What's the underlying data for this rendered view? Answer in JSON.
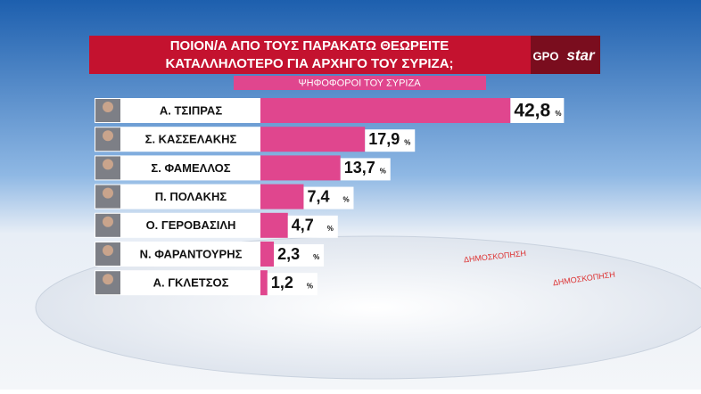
{
  "chart_data": {
    "type": "bar",
    "title": [
      "ΠΟΙΟΝ/Α ΑΠΟ ΤΟΥΣ ΠΑΡΑΚΑΤΩ ΘΕΩΡΕΙΤΕ",
      "ΚΑΤΑΛΛΗΛΟΤΕΡΟ ΓΙΑ ΑΡΧΗΓΟ ΤΟΥ ΣΥΡΙΖΑ;"
    ],
    "subtitle": "ΨΗΦΟΦΟΡΟΙ ΤΟΥ ΣΥΡΙΖΑ",
    "logo": [
      "GPO",
      "star"
    ],
    "background_text": "ΔΗΜΟΣΚΟΠΗΣΗ",
    "categories": [
      "Α. ΤΣΙΠΡΑΣ",
      "Σ. ΚΑΣΣΕΛΑΚΗΣ",
      "Σ. ΦΑΜΕΛΛΟΣ",
      "Π. ΠΟΛΑΚΗΣ",
      "Ο. ΓΕΡΟΒΑΣΙΛΗ",
      "Ν. ΦΑΡΑΝΤΟΥΡΗΣ",
      "Α. ΓΚΛΕΤΣΟΣ"
    ],
    "values": [
      42.8,
      17.9,
      13.7,
      7.4,
      4.7,
      2.3,
      1.2
    ],
    "value_labels": [
      "42,8",
      "17,9",
      "13,7",
      "7,4",
      "4,7",
      "2,3",
      "1,2"
    ],
    "unit": "%",
    "color": "#e0468e"
  }
}
